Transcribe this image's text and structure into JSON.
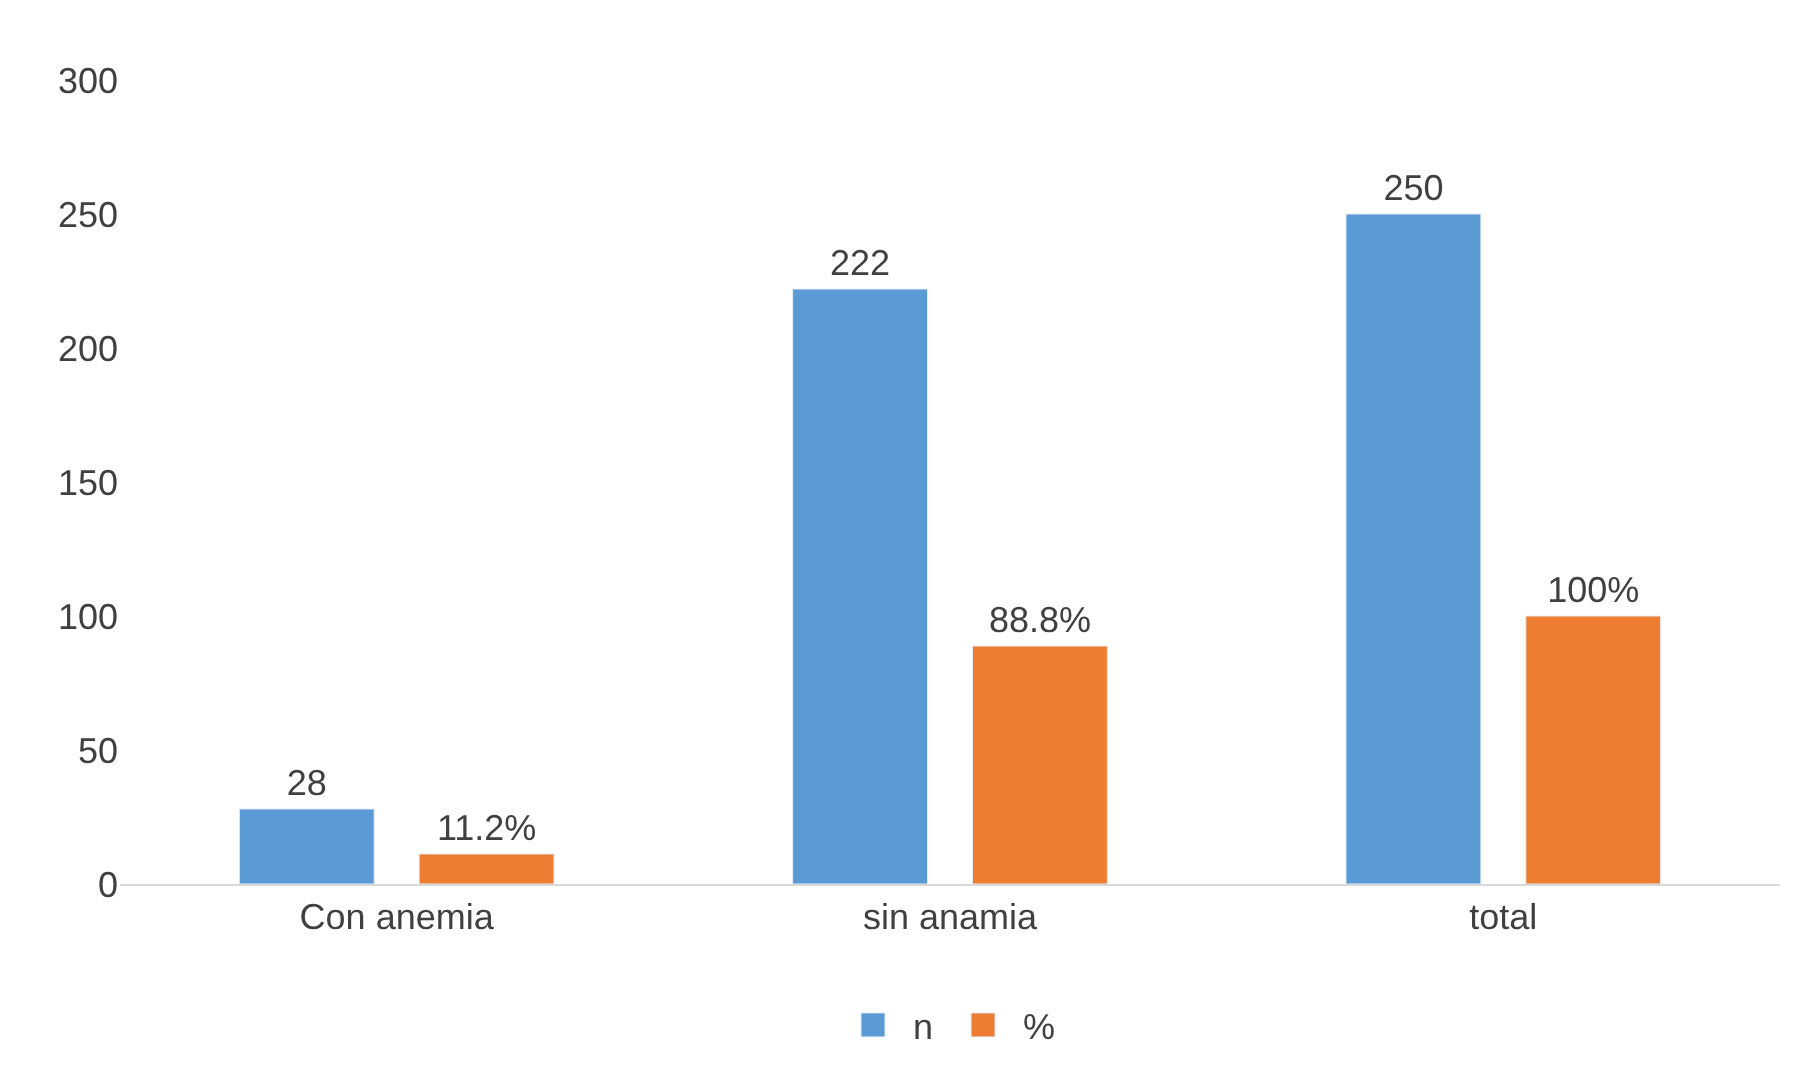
{
  "chart_data": {
    "type": "bar",
    "categories": [
      "Con anemia",
      "sin anamia",
      "total"
    ],
    "series": [
      {
        "name": "n",
        "color": "#5b9bd5",
        "values": [
          28,
          222,
          250
        ],
        "value_labels": [
          "28",
          "222",
          "250"
        ]
      },
      {
        "name": "%",
        "color": "#ed7d31",
        "values": [
          11.2,
          88.8,
          100
        ],
        "value_labels": [
          "11.2%",
          "88.8%",
          "100%"
        ]
      }
    ],
    "ylim": [
      0,
      300
    ],
    "yticks": [
      0,
      50,
      100,
      150,
      200,
      250,
      300
    ],
    "grid": false,
    "legend": "bottom"
  }
}
